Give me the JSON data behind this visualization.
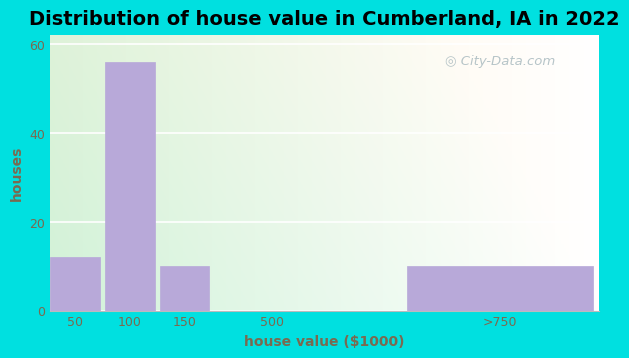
{
  "title": "Distribution of house value in Cumberland, IA in 2022",
  "xlabel": "house value ($1000)",
  "ylabel": "houses",
  "bar_labels": [
    "50",
    "100",
    "150",
    "500",
    ">750"
  ],
  "bar_values": [
    12,
    56,
    10,
    0,
    10
  ],
  "bar_color": "#b8a9d9",
  "bar_edgecolor": "#b8a9d9",
  "ylim": [
    0,
    62
  ],
  "yticks": [
    0,
    20,
    40,
    60
  ],
  "bg_outer": "#00e0e0",
  "title_fontsize": 14,
  "axis_label_color": "#7a6a50",
  "tick_label_color": "#7a6a50",
  "watermark_text": "City-Data.com",
  "watermark_color": "#aabbc0",
  "xlim_min": 0,
  "xlim_max": 10,
  "bar_lefts": [
    0.0,
    1.0,
    2.0,
    4.0,
    6.5
  ],
  "bar_widths": [
    0.9,
    0.9,
    0.9,
    0.1,
    3.4
  ],
  "xtick_positions": [
    0.45,
    1.45,
    2.45,
    4.05,
    8.2
  ],
  "xtick_labels": [
    "50",
    "100",
    "150",
    "500",
    ">750"
  ],
  "grid_color": "#e8e8e8"
}
